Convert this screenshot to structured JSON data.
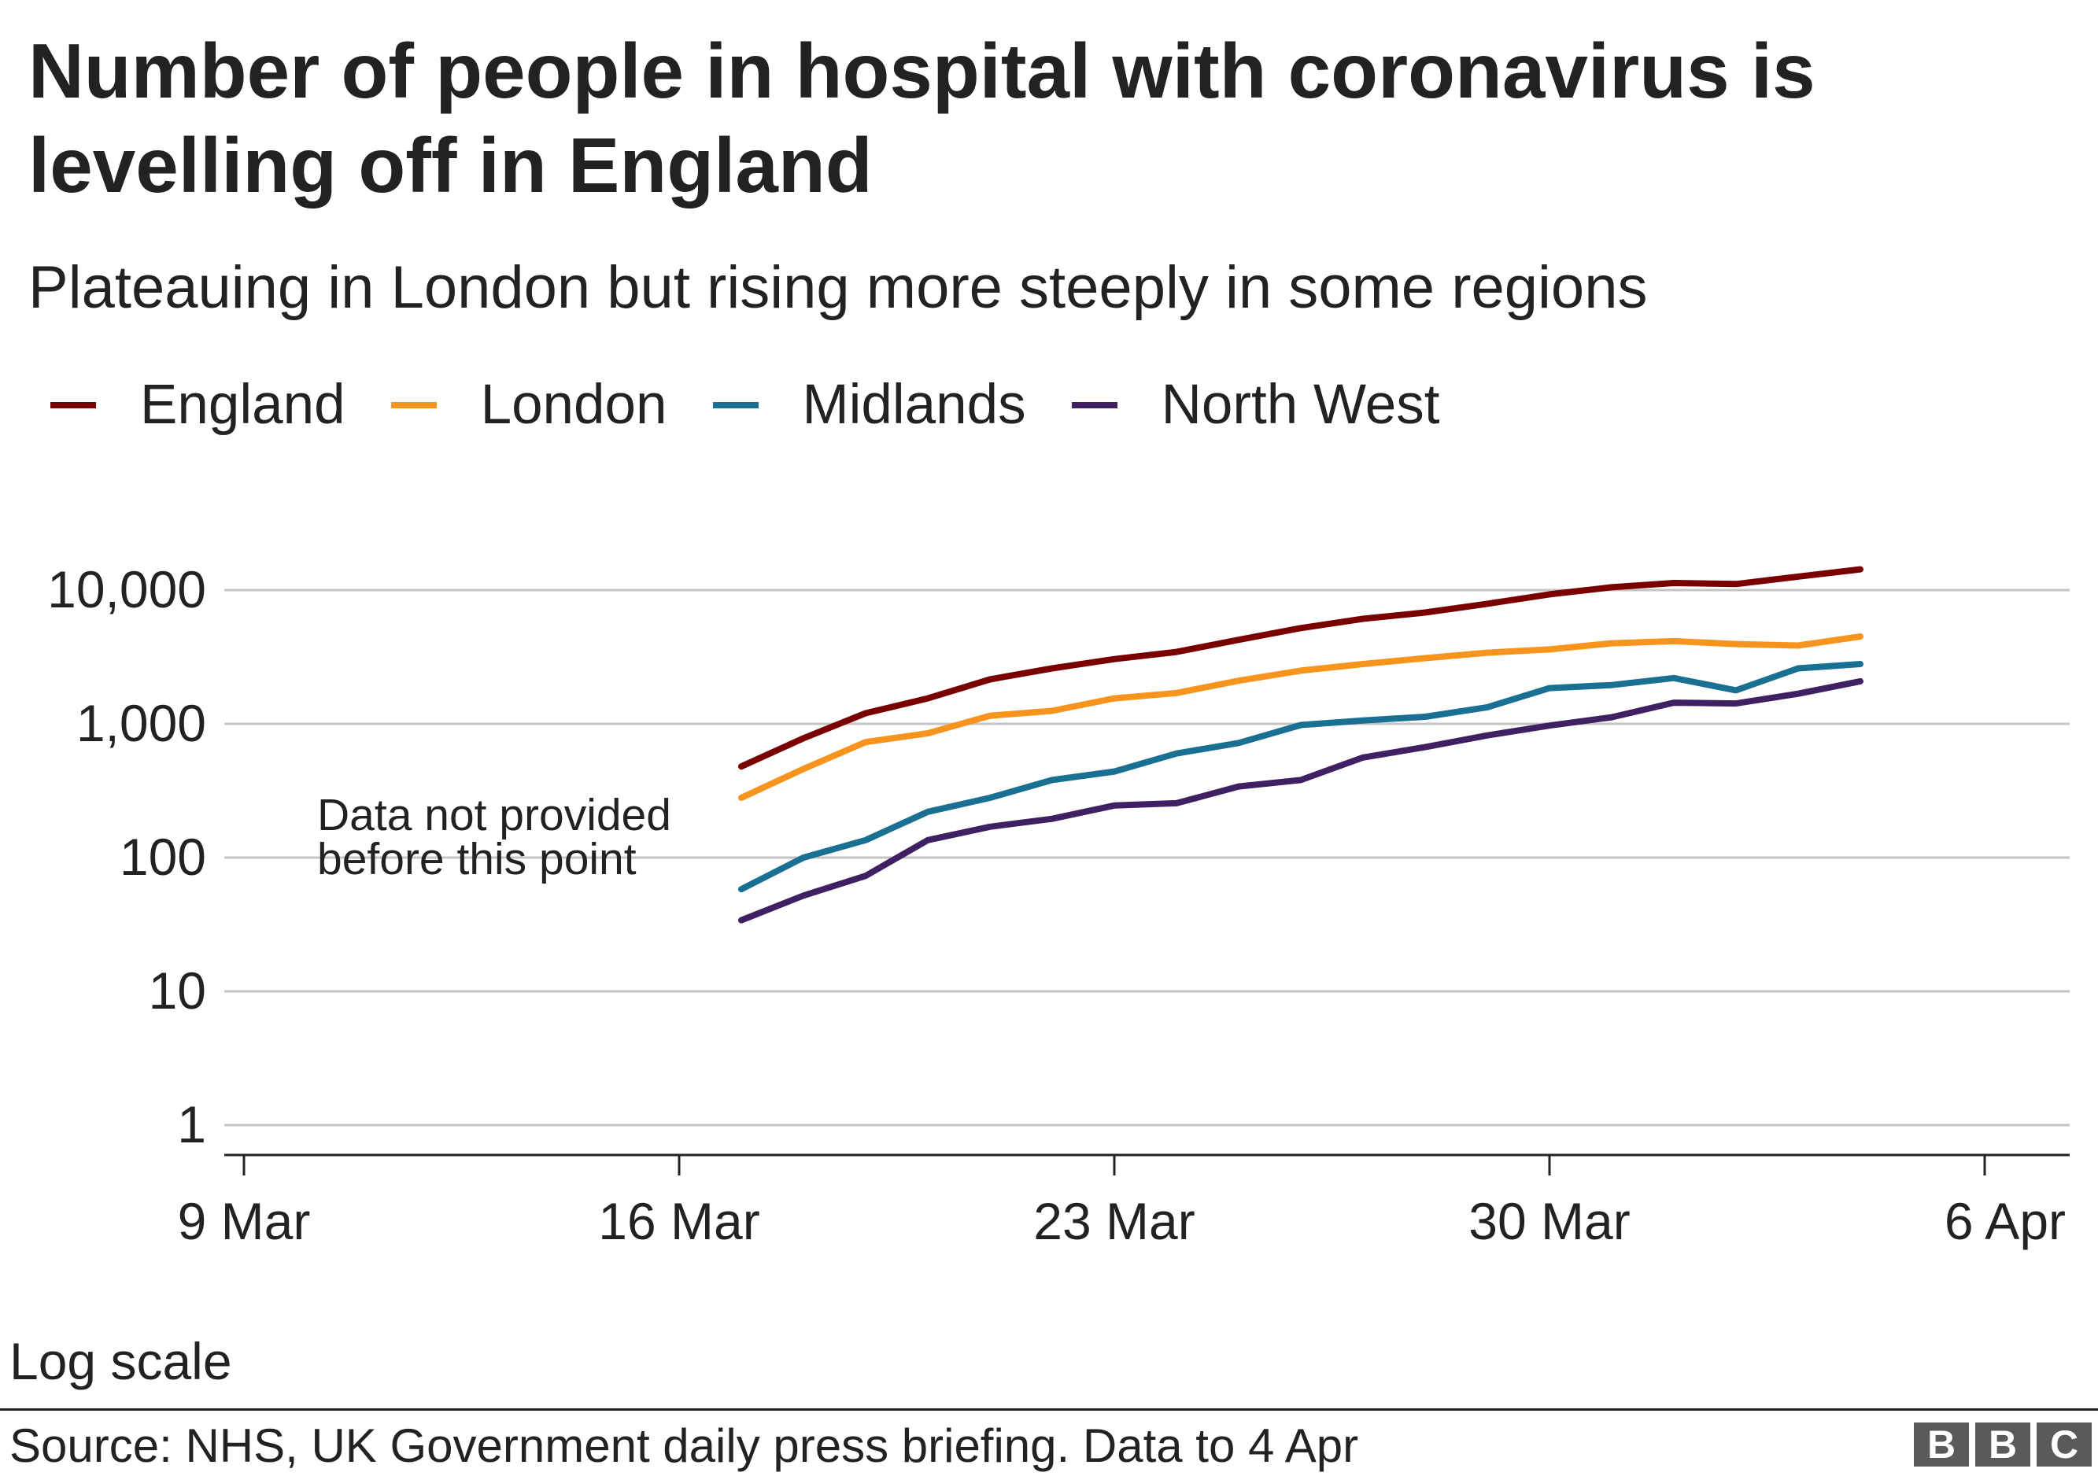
{
  "title": "Number of people in hospital with coronavirus is levelling off in England",
  "subtitle": "Plateauing in London but rising more steeply in some regions",
  "note": "Log scale",
  "source": "Source: NHS, UK Government daily press briefing. Data to 4 Apr",
  "logo": [
    "B",
    "B",
    "C"
  ],
  "chart_data": {
    "type": "line",
    "title": "Number of people in hospital with coronavirus is levelling off in England",
    "subtitle": "Plateauing in London but rising more steeply in some regions",
    "xlabel": "",
    "ylabel": "",
    "yscale": "log",
    "ylim": [
      1,
      20000
    ],
    "xlim": [
      "2020-03-09",
      "2020-04-07"
    ],
    "grid": true,
    "legend_position": "top-left",
    "x_ticks": [
      {
        "date": "2020-03-09",
        "label": "9 Mar"
      },
      {
        "date": "2020-03-16",
        "label": "16 Mar"
      },
      {
        "date": "2020-03-23",
        "label": "23 Mar"
      },
      {
        "date": "2020-03-30",
        "label": "30 Mar"
      },
      {
        "date": "2020-04-06",
        "label": "6 Apr"
      }
    ],
    "y_ticks": [
      {
        "value": 1,
        "label": "1"
      },
      {
        "value": 10,
        "label": "10"
      },
      {
        "value": 100,
        "label": "100"
      },
      {
        "value": 1000,
        "label": "1,000"
      },
      {
        "value": 10000,
        "label": "10,000"
      }
    ],
    "x": [
      "2020-03-17",
      "2020-03-18",
      "2020-03-19",
      "2020-03-20",
      "2020-03-21",
      "2020-03-22",
      "2020-03-23",
      "2020-03-24",
      "2020-03-25",
      "2020-03-26",
      "2020-03-27",
      "2020-03-28",
      "2020-03-29",
      "2020-03-30",
      "2020-03-31",
      "2020-04-01",
      "2020-04-02",
      "2020-04-03",
      "2020-04-04"
    ],
    "series": [
      {
        "name": "England",
        "color": "#7a0000",
        "values": [
          480,
          780,
          1200,
          1550,
          2150,
          2600,
          3050,
          3450,
          4250,
          5200,
          6100,
          6800,
          7900,
          9300,
          10500,
          11300,
          11100,
          12600,
          14300
        ]
      },
      {
        "name": "London",
        "color": "#f7941d",
        "values": [
          280,
          460,
          730,
          850,
          1150,
          1250,
          1550,
          1700,
          2100,
          2500,
          2800,
          3100,
          3400,
          3600,
          4000,
          4150,
          3950,
          3850,
          4500
        ]
      },
      {
        "name": "Midlands",
        "color": "#1a7092",
        "values": [
          58,
          100,
          135,
          220,
          280,
          380,
          440,
          600,
          720,
          980,
          1060,
          1130,
          1330,
          1850,
          1950,
          2200,
          1780,
          2600,
          2800
        ]
      },
      {
        "name": "North West",
        "color": "#3e2063",
        "values": [
          34,
          52,
          73,
          135,
          170,
          195,
          245,
          255,
          340,
          380,
          560,
          670,
          820,
          970,
          1120,
          1440,
          1420,
          1680,
          2080
        ]
      }
    ],
    "annotation": "Data not provided before this point",
    "annotation_lines": [
      "Data not provided",
      "before this point"
    ]
  }
}
